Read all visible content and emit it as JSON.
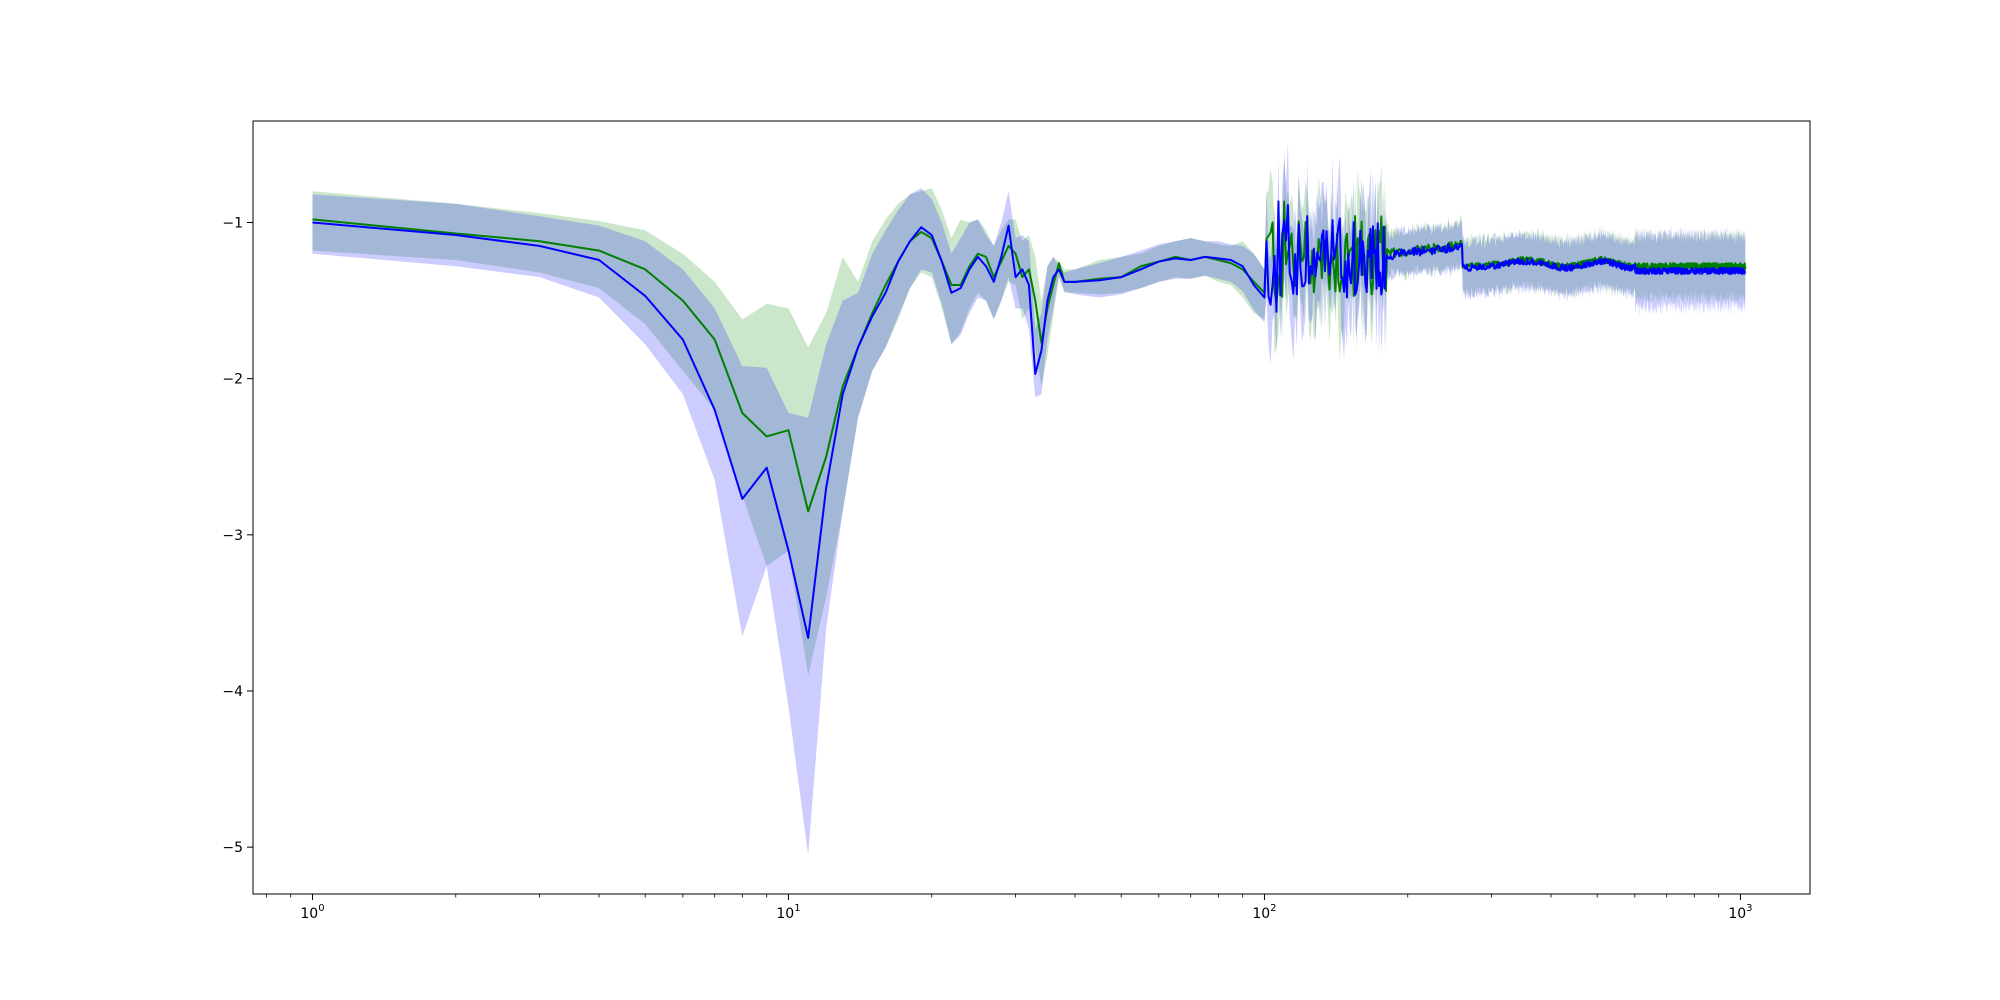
{
  "chart_data": {
    "type": "line",
    "title": "",
    "xlabel": "",
    "ylabel": "",
    "xscale": "log",
    "xlim": [
      0.75,
      1400
    ],
    "ylim": [
      -5.3,
      -0.35
    ],
    "grid": false,
    "legend": "none",
    "x_ticks": [
      {
        "value": 1,
        "base": "10",
        "exp": "0"
      },
      {
        "value": 10,
        "base": "10",
        "exp": "1"
      },
      {
        "value": 100,
        "base": "10",
        "exp": "2"
      },
      {
        "value": 1000,
        "base": "10",
        "exp": "3"
      }
    ],
    "y_ticks": [
      {
        "value": -1,
        "label": "−1"
      },
      {
        "value": -2,
        "label": "−2"
      },
      {
        "value": -3,
        "label": "−3"
      },
      {
        "value": -4,
        "label": "−4"
      },
      {
        "value": -5,
        "label": "−5"
      }
    ],
    "series": [
      {
        "color": "#008000",
        "band_color": "#008000",
        "band_opacity": 0.2,
        "x": [
          1,
          2,
          3,
          4,
          5,
          6,
          7,
          8,
          9,
          10,
          11,
          12,
          13,
          14,
          15,
          16,
          17,
          18,
          19,
          20,
          21,
          22,
          23,
          24,
          25,
          26,
          27,
          28,
          29,
          30,
          31,
          32,
          33,
          34,
          35,
          36,
          37,
          38,
          40,
          45,
          50,
          55,
          60,
          65,
          70,
          75,
          80,
          85,
          90,
          95,
          100
        ],
        "y": [
          -0.98,
          -1.07,
          -1.12,
          -1.18,
          -1.3,
          -1.5,
          -1.75,
          -2.22,
          -2.37,
          -2.33,
          -2.85,
          -2.5,
          -2.05,
          -1.8,
          -1.58,
          -1.4,
          -1.25,
          -1.12,
          -1.06,
          -1.1,
          -1.25,
          -1.4,
          -1.4,
          -1.28,
          -1.2,
          -1.22,
          -1.35,
          -1.25,
          -1.15,
          -1.2,
          -1.35,
          -1.3,
          -1.5,
          -1.77,
          -1.55,
          -1.4,
          -1.26,
          -1.38,
          -1.38,
          -1.36,
          -1.35,
          -1.28,
          -1.25,
          -1.22,
          -1.24,
          -1.22,
          -1.24,
          -1.26,
          -1.3,
          -1.38,
          -1.45
        ],
        "upper": [
          -0.8,
          -0.88,
          -0.94,
          -0.99,
          -1.05,
          -1.2,
          -1.38,
          -1.62,
          -1.52,
          -1.55,
          -1.8,
          -1.58,
          -1.22,
          -1.38,
          -1.12,
          -0.98,
          -0.88,
          -0.82,
          -0.8,
          -0.78,
          -0.92,
          -1.1,
          -0.98,
          -1.0,
          -0.98,
          -1.05,
          -1.15,
          -1.05,
          -0.98,
          -0.98,
          -1.12,
          -1.08,
          -1.22,
          -1.5,
          -1.28,
          -1.22,
          -1.25,
          -1.3,
          -1.3,
          -1.24,
          -1.22,
          -1.2,
          -1.15,
          -1.12,
          -1.1,
          -1.12,
          -1.14,
          -1.15,
          -1.12,
          -1.2,
          -1.3
        ],
        "lower": [
          -1.18,
          -1.24,
          -1.32,
          -1.42,
          -1.65,
          -1.95,
          -2.2,
          -2.75,
          -3.2,
          -3.1,
          -3.9,
          -3.4,
          -2.85,
          -2.25,
          -1.95,
          -1.8,
          -1.62,
          -1.42,
          -1.32,
          -1.35,
          -1.55,
          -1.78,
          -1.7,
          -1.55,
          -1.45,
          -1.5,
          -1.62,
          -1.5,
          -1.38,
          -1.4,
          -1.62,
          -1.55,
          -1.8,
          -2.05,
          -1.85,
          -1.6,
          -1.35,
          -1.45,
          -1.45,
          -1.46,
          -1.45,
          -1.42,
          -1.38,
          -1.35,
          -1.36,
          -1.34,
          -1.38,
          -1.4,
          -1.48,
          -1.58,
          -1.62
        ]
      },
      {
        "color": "#0000ff",
        "band_color": "#0000ff",
        "band_opacity": 0.2,
        "x": [
          1,
          2,
          3,
          4,
          5,
          6,
          7,
          8,
          9,
          10,
          11,
          12,
          13,
          14,
          15,
          16,
          17,
          18,
          19,
          20,
          21,
          22,
          23,
          24,
          25,
          26,
          27,
          28,
          29,
          30,
          31,
          32,
          33,
          34,
          35,
          36,
          37,
          38,
          40,
          45,
          50,
          55,
          60,
          65,
          70,
          75,
          80,
          85,
          90,
          95,
          100
        ],
        "y": [
          -1.0,
          -1.08,
          -1.15,
          -1.24,
          -1.47,
          -1.75,
          -2.2,
          -2.77,
          -2.57,
          -3.1,
          -3.66,
          -2.7,
          -2.1,
          -1.8,
          -1.6,
          -1.45,
          -1.25,
          -1.12,
          -1.03,
          -1.08,
          -1.25,
          -1.45,
          -1.42,
          -1.3,
          -1.22,
          -1.28,
          -1.38,
          -1.22,
          -1.02,
          -1.35,
          -1.3,
          -1.4,
          -1.97,
          -1.82,
          -1.5,
          -1.35,
          -1.3,
          -1.38,
          -1.38,
          -1.37,
          -1.35,
          -1.3,
          -1.25,
          -1.23,
          -1.24,
          -1.22,
          -1.23,
          -1.24,
          -1.28,
          -1.4,
          -1.48
        ],
        "upper": [
          -0.82,
          -0.88,
          -0.96,
          -1.02,
          -1.12,
          -1.3,
          -1.55,
          -1.92,
          -1.93,
          -2.22,
          -2.25,
          -1.78,
          -1.5,
          -1.45,
          -1.2,
          -1.05,
          -0.92,
          -0.82,
          -0.78,
          -0.85,
          -1.0,
          -1.2,
          -1.1,
          -1.0,
          -0.98,
          -1.08,
          -1.15,
          -1.0,
          -0.8,
          -1.1,
          -1.08,
          -1.12,
          -1.68,
          -1.58,
          -1.28,
          -1.22,
          -1.28,
          -1.32,
          -1.3,
          -1.26,
          -1.22,
          -1.18,
          -1.14,
          -1.12,
          -1.1,
          -1.12,
          -1.12,
          -1.14,
          -1.15,
          -1.2,
          -1.3
        ],
        "lower": [
          -1.2,
          -1.28,
          -1.35,
          -1.48,
          -1.78,
          -2.1,
          -2.65,
          -3.65,
          -3.2,
          -4.1,
          -5.05,
          -3.6,
          -2.85,
          -2.25,
          -1.95,
          -1.8,
          -1.6,
          -1.42,
          -1.3,
          -1.32,
          -1.52,
          -1.78,
          -1.72,
          -1.58,
          -1.48,
          -1.5,
          -1.62,
          -1.5,
          -1.35,
          -1.55,
          -1.55,
          -1.68,
          -2.12,
          -2.1,
          -1.75,
          -1.55,
          -1.34,
          -1.44,
          -1.46,
          -1.48,
          -1.46,
          -1.42,
          -1.38,
          -1.36,
          -1.36,
          -1.34,
          -1.36,
          -1.38,
          -1.44,
          -1.56,
          -1.64
        ]
      }
    ]
  }
}
